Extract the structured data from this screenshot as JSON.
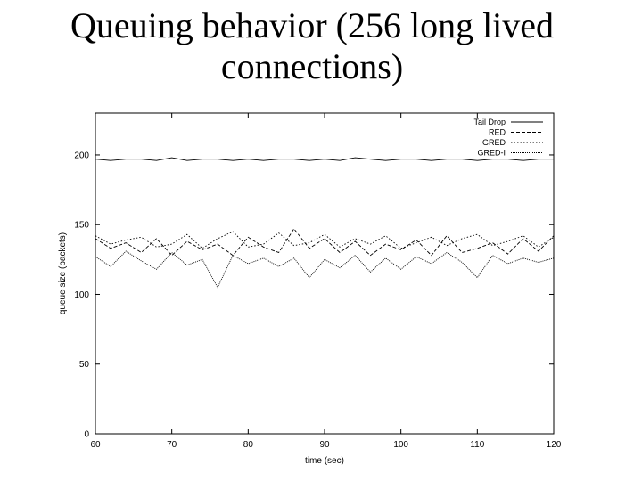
{
  "slide": {
    "title_line1": "Queuing behavior (256 long lived",
    "title_line2": "connections)"
  },
  "chart_data": {
    "type": "line",
    "title": "",
    "xlabel": "time (sec)",
    "ylabel": "queue size (packets)",
    "xlim": [
      60,
      120
    ],
    "ylim": [
      0,
      230
    ],
    "x_ticks": [
      60,
      70,
      80,
      90,
      100,
      110,
      120
    ],
    "y_ticks": [
      0,
      50,
      100,
      150,
      200
    ],
    "grid": false,
    "legend_position": "top-right",
    "series": [
      {
        "name": "Tail Drop",
        "style": "solid",
        "x": [
          60,
          62,
          64,
          66,
          68,
          70,
          72,
          74,
          76,
          78,
          80,
          82,
          84,
          86,
          88,
          90,
          92,
          94,
          96,
          98,
          100,
          102,
          104,
          106,
          108,
          110,
          112,
          114,
          116,
          118,
          120
        ],
        "values": [
          197,
          196,
          197,
          197,
          196,
          198,
          196,
          197,
          197,
          196,
          197,
          196,
          197,
          197,
          196,
          197,
          196,
          198,
          197,
          196,
          197,
          197,
          196,
          197,
          197,
          196,
          197,
          197,
          196,
          197,
          197
        ]
      },
      {
        "name": "RED",
        "style": "dashed",
        "x": [
          60,
          62,
          64,
          66,
          68,
          70,
          72,
          74,
          76,
          78,
          80,
          82,
          84,
          86,
          88,
          90,
          92,
          94,
          96,
          98,
          100,
          102,
          104,
          106,
          108,
          110,
          112,
          114,
          116,
          118,
          120
        ],
        "values": [
          140,
          133,
          137,
          130,
          140,
          128,
          138,
          132,
          136,
          128,
          141,
          134,
          130,
          147,
          133,
          140,
          130,
          138,
          128,
          136,
          132,
          139,
          128,
          142,
          130,
          133,
          137,
          129,
          140,
          131,
          142
        ]
      },
      {
        "name": "GRED",
        "style": "dotted",
        "x": [
          60,
          62,
          64,
          66,
          68,
          70,
          72,
          74,
          76,
          78,
          80,
          82,
          84,
          86,
          88,
          90,
          92,
          94,
          96,
          98,
          100,
          102,
          104,
          106,
          108,
          110,
          112,
          114,
          116,
          118,
          120
        ],
        "values": [
          142,
          136,
          139,
          141,
          134,
          136,
          143,
          133,
          140,
          145,
          134,
          136,
          144,
          135,
          137,
          143,
          134,
          140,
          136,
          142,
          133,
          137,
          141,
          135,
          140,
          143,
          135,
          138,
          142,
          134,
          141
        ]
      },
      {
        "name": "GRED-I",
        "style": "densely-dotted",
        "x": [
          60,
          62,
          64,
          66,
          68,
          70,
          72,
          74,
          76,
          78,
          80,
          82,
          84,
          86,
          88,
          90,
          92,
          94,
          96,
          98,
          100,
          102,
          104,
          106,
          108,
          110,
          112,
          114,
          116,
          118,
          120
        ],
        "values": [
          127,
          120,
          131,
          124,
          118,
          130,
          121,
          125,
          105,
          128,
          122,
          126,
          120,
          126,
          112,
          125,
          119,
          128,
          116,
          126,
          118,
          127,
          122,
          130,
          123,
          112,
          128,
          122,
          126,
          123,
          126
        ]
      }
    ]
  }
}
